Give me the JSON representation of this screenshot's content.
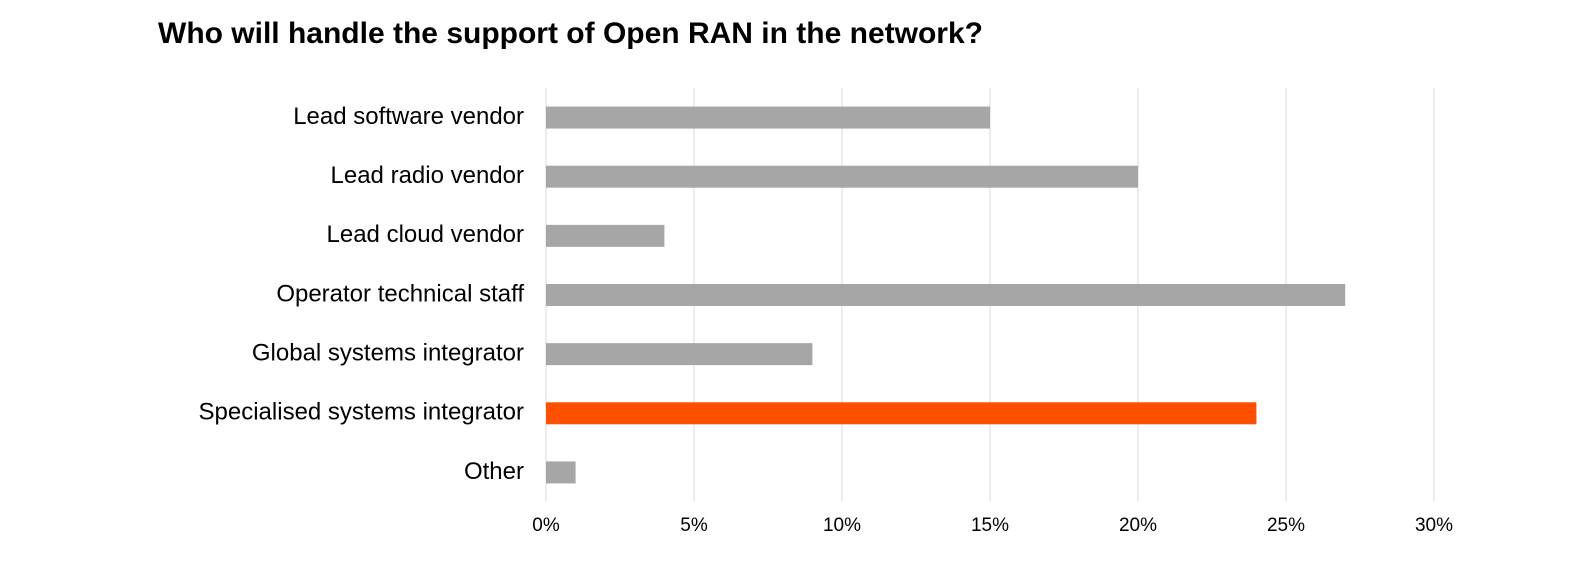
{
  "chart_data": {
    "type": "hbar",
    "title": "Who will handle the support of Open RAN in the network?",
    "categories": [
      "Lead software vendor",
      "Lead radio vendor",
      "Lead cloud vendor",
      "Operator technical staff",
      "Global systems integrator",
      "Specialised systems integrator",
      "Other"
    ],
    "values": [
      15,
      20,
      4,
      27,
      9,
      24,
      1
    ],
    "colors": [
      "#a6a6a6",
      "#a6a6a6",
      "#a6a6a6",
      "#a6a6a6",
      "#a6a6a6",
      "#ff5000",
      "#a6a6a6"
    ],
    "xlim": [
      0,
      30
    ],
    "xticks": [
      {
        "value": 0,
        "label": "0%"
      },
      {
        "value": 5,
        "label": "5%"
      },
      {
        "value": 10,
        "label": "10%"
      },
      {
        "value": 15,
        "label": "15%"
      },
      {
        "value": 20,
        "label": "20%"
      },
      {
        "value": 25,
        "label": "25%"
      },
      {
        "value": 30,
        "label": "30%"
      }
    ],
    "grid": true
  }
}
